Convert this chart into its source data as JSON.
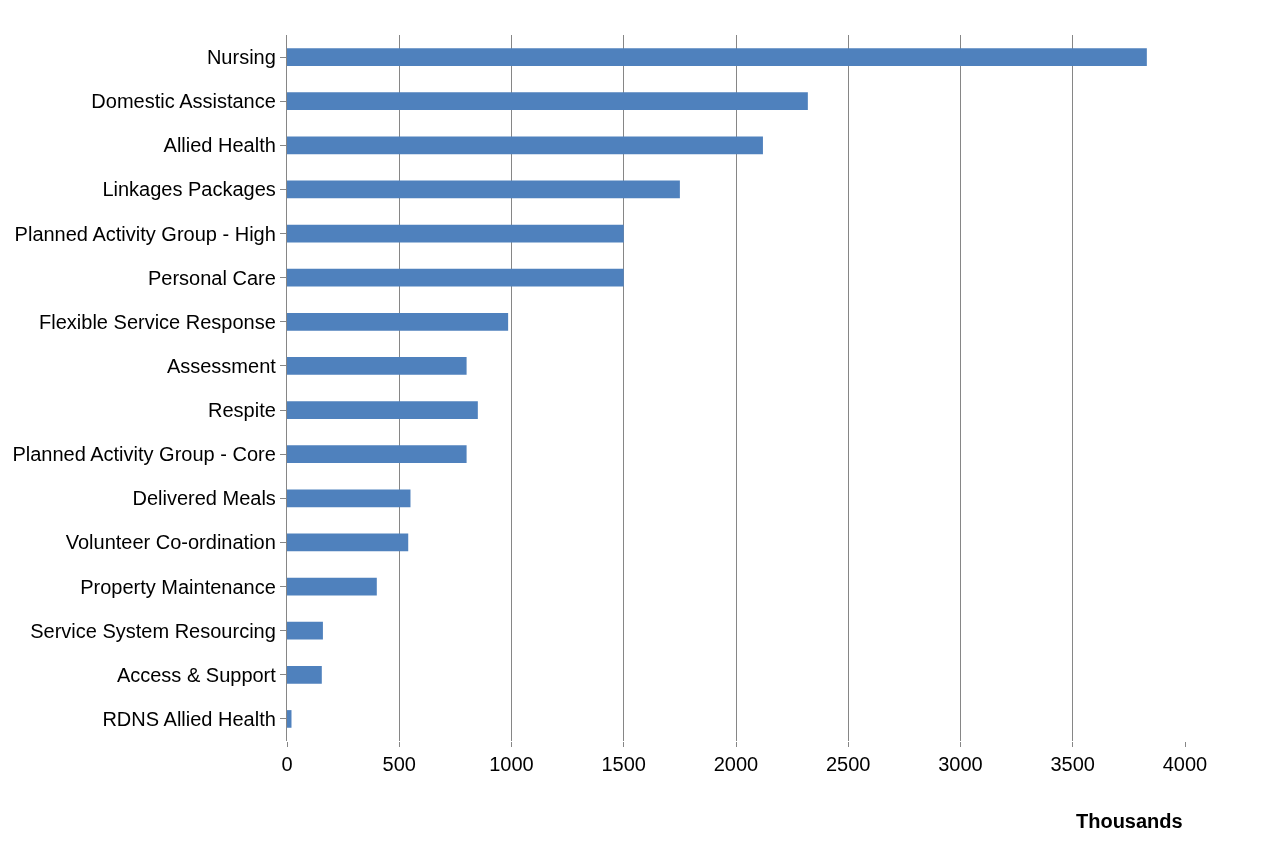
{
  "chart_data": {
    "type": "bar",
    "orientation": "horizontal",
    "xlabel": "Thousands",
    "categories": [
      "Nursing",
      "Domestic Assistance",
      "Allied Health",
      "Linkages Packages",
      "Planned Activity Group - High",
      "Personal Care",
      "Flexible Service Response",
      "Assessment",
      "Respite",
      "Planned Activity Group - Core",
      "Delivered Meals",
      "Volunteer Co-ordination",
      "Property Maintenance",
      "Service System Resourcing",
      "Access & Support",
      "RDNS Allied Health"
    ],
    "values": [
      3830,
      2320,
      2120,
      1750,
      1500,
      1500,
      985,
      800,
      850,
      800,
      550,
      540,
      400,
      160,
      155,
      20
    ],
    "color": "#4f81bd",
    "xlim": [
      0,
      4000
    ],
    "xticks": [
      0,
      500,
      1000,
      1500,
      2000,
      2500,
      3000,
      3500,
      4000
    ],
    "grid": "x"
  }
}
